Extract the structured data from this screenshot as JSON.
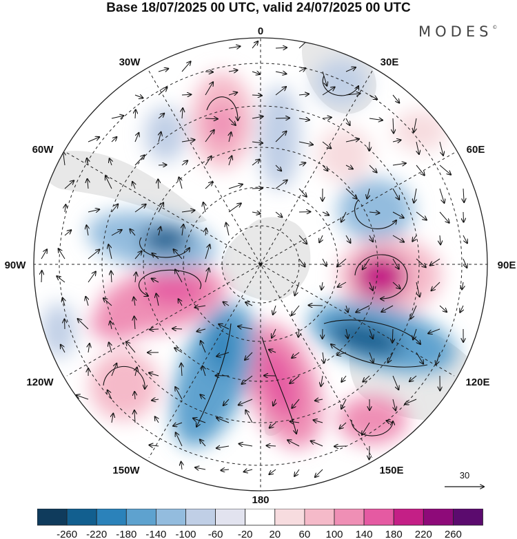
{
  "title": "Base 18/07/2025 00 UTC, valid 24/07/2025 00 UTC",
  "brand": "MODES",
  "brand_mark": "©",
  "longitude_labels": {
    "lon_0": "0",
    "lon_30e": "30E",
    "lon_60e": "60E",
    "lon_90e": "90E",
    "lon_120e": "120E",
    "lon_150e": "150E",
    "lon_180": "180",
    "lon_150w": "150W",
    "lon_120w": "120W",
    "lon_90w": "90W",
    "lon_60w": "60W",
    "lon_30w": "30W"
  },
  "reference_vector": "30",
  "colorbar": {
    "ticks": [
      "-260",
      "-220",
      "-180",
      "-140",
      "-100",
      "-60",
      "-20",
      "20",
      "60",
      "100",
      "140",
      "180",
      "220",
      "260"
    ],
    "colors": [
      "#0f3b5c",
      "#125f8f",
      "#2b82ba",
      "#5ea2cf",
      "#93bcde",
      "#c0cfe6",
      "#e2e3ef",
      "#ffffff",
      "#f7dcdf",
      "#f5bac9",
      "#ef8fb5",
      "#e55aa2",
      "#c41f86",
      "#8e0a79",
      "#5b0b6e"
    ]
  },
  "map_colors": {
    "land": "#e8e8e8",
    "negative_anomaly": "#2b82ba",
    "positive_anomaly": "#e55aa2"
  }
}
